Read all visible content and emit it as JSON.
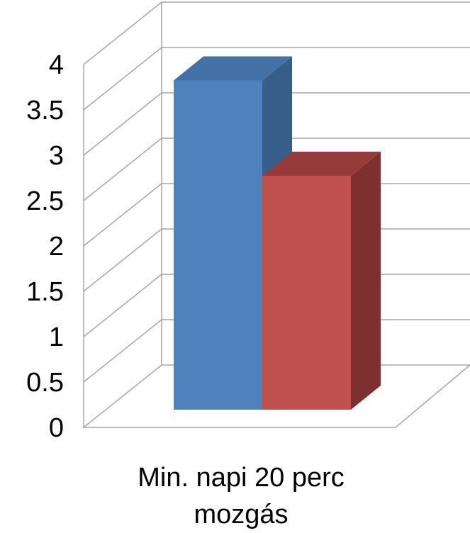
{
  "chart_data": {
    "type": "bar",
    "style": "3d-clustered-column",
    "categories": [
      "Min. napi 20 perc mozgás"
    ],
    "category_lines": [
      "Min. napi 20 perc",
      "mozgás"
    ],
    "series": [
      {
        "values": [
          3.8
        ],
        "color": "#4F81BD"
      },
      {
        "values": [
          2.7
        ],
        "color": "#C0504D"
      }
    ],
    "ylim": [
      0,
      4
    ],
    "yticks": [
      "0",
      "0.5",
      "1",
      "1.5",
      "2",
      "2.5",
      "3",
      "3.5",
      "4"
    ],
    "grid": true,
    "legend": "none"
  },
  "colors": {
    "grid": "#A6A6A6",
    "series_1_top": "#4472A8",
    "series_1_side": "#375E89",
    "series_2_top": "#953B39",
    "series_2_side": "#7D302F"
  }
}
